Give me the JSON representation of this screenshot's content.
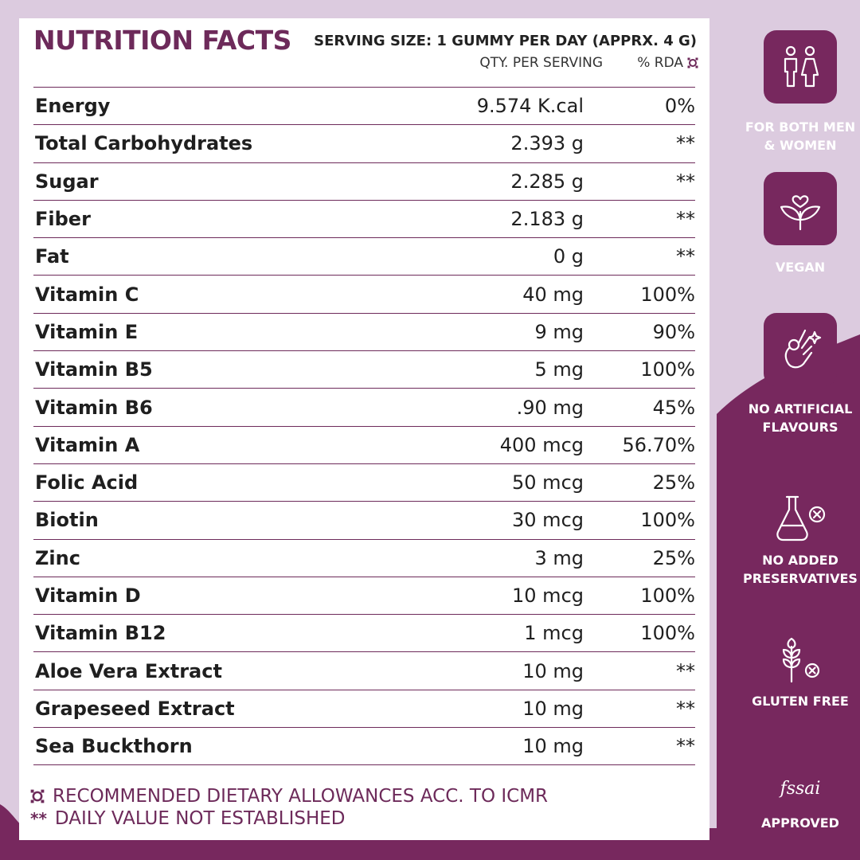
{
  "title": "NUTRITION FACTS",
  "serving_size": "SERVING SIZE: 1 GUMMY PER DAY (APPRX. 4 G)",
  "columns": {
    "qty": "QTY. PER SERVING",
    "rda": "% RDA"
  },
  "rows": [
    {
      "name": "Energy",
      "qty": "9.574 K.cal",
      "rda": "0%"
    },
    {
      "name": "Total Carbohydrates",
      "qty": "2.393 g",
      "rda": "**"
    },
    {
      "name": "Sugar",
      "qty": "2.285 g",
      "rda": "**"
    },
    {
      "name": "Fiber",
      "qty": "2.183 g",
      "rda": "**"
    },
    {
      "name": "Fat",
      "qty": "0 g",
      "rda": "**"
    },
    {
      "name": "Vitamin C",
      "qty": "40 mg",
      "rda": "100%"
    },
    {
      "name": "Vitamin E",
      "qty": "9 mg",
      "rda": "90%"
    },
    {
      "name": "Vitamin B5",
      "qty": "5 mg",
      "rda": "100%"
    },
    {
      "name": "Vitamin B6",
      "qty": ".90 mg",
      "rda": "45%"
    },
    {
      "name": "Vitamin A",
      "qty": "400 mcg",
      "rda": "56.70%"
    },
    {
      "name": "Folic Acid",
      "qty": "50 mcg",
      "rda": "25%"
    },
    {
      "name": "Biotin",
      "qty": "30 mcg",
      "rda": "100%"
    },
    {
      "name": "Zinc",
      "qty": "3 mg",
      "rda": "25%"
    },
    {
      "name": "Vitamin D",
      "qty": "10 mcg",
      "rda": "100%"
    },
    {
      "name": "Vitamin B12",
      "qty": "1 mcg",
      "rda": "100%"
    },
    {
      "name": "Aloe Vera Extract",
      "qty": "10 mg",
      "rda": "**"
    },
    {
      "name": "Grapeseed Extract",
      "qty": "10 mg",
      "rda": "**"
    },
    {
      "name": "Sea Buckthorn",
      "qty": "10 mg",
      "rda": "**"
    }
  ],
  "footnotes": {
    "rda_note": "RECOMMENDED DIETARY ALLOWANCES ACC. TO ICMR",
    "stars": "**",
    "stars_note": "DAILY VALUE NOT ESTABLISHED"
  },
  "badges": {
    "men_women": [
      "FOR BOTH MEN",
      "& WOMEN"
    ],
    "vegan": "VEGAN",
    "no_artificial": [
      "NO ARTIFICIAL",
      "FLAVOURS"
    ],
    "no_preservatives": [
      "NO ADDED",
      "PRESERVATIVES"
    ],
    "gluten_free": "GLUTEN FREE",
    "fssai_logo": "fssai",
    "approved": "APPROVED"
  },
  "colors": {
    "plum": "#77285e",
    "lilac": "#dccbdf",
    "title": "#6d2a5a"
  }
}
